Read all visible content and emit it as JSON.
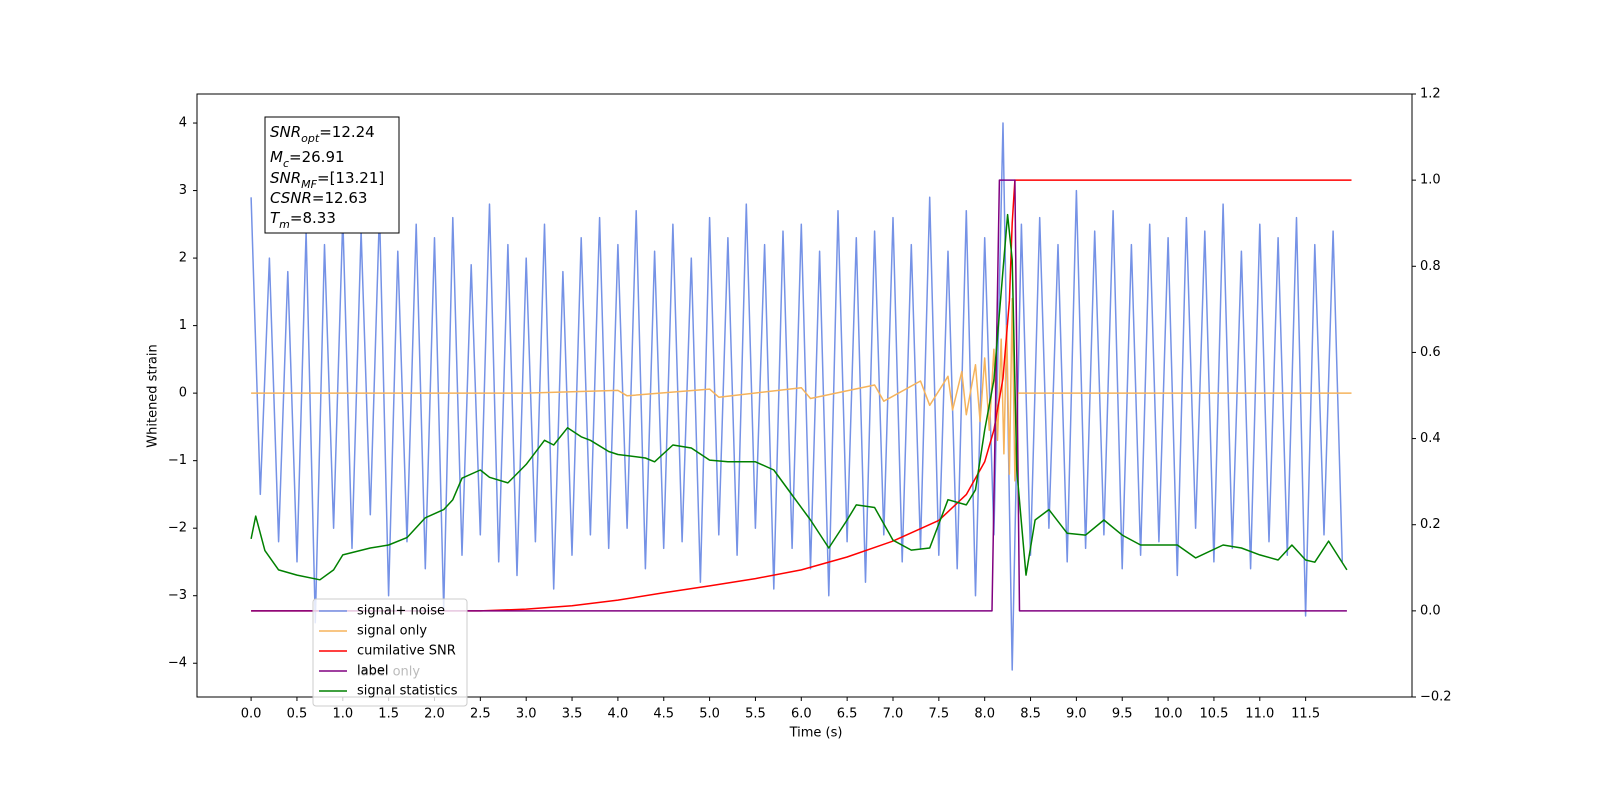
{
  "chart_data": {
    "type": "line",
    "xlabel": "Time (s)",
    "ylabel": "Whitened strain",
    "xlim": [
      -0.59,
      12.66
    ],
    "ylim": [
      -4.5,
      4.43
    ],
    "y2lim": [
      -0.2,
      1.2
    ],
    "xticks": [
      {
        "value": 0,
        "label": "0.0"
      },
      0.5,
      {
        "value": 1,
        "label": "1.0"
      },
      1.5,
      {
        "value": 2,
        "label": "2.0"
      },
      2.5,
      {
        "value": 3,
        "label": "3.0"
      },
      3.5,
      {
        "value": 4,
        "label": "4.0"
      },
      4.5,
      {
        "value": 5,
        "label": "5.0"
      },
      5.5,
      {
        "value": 6,
        "label": "6.0"
      },
      6.5,
      {
        "value": 7,
        "label": "7.0"
      },
      7.5,
      {
        "value": 8,
        "label": "8.0"
      },
      8.5,
      {
        "value": 9,
        "label": "9.0"
      },
      9.5,
      {
        "value": 10,
        "label": "10.0"
      },
      10.5,
      {
        "value": 11,
        "label": "11.0"
      },
      11.5
    ],
    "yticks": [
      {
        "value": -4,
        "label": "−4"
      },
      {
        "value": -3,
        "label": "−3"
      },
      {
        "value": -2,
        "label": "−2"
      },
      {
        "value": -1,
        "label": "−1"
      },
      0,
      1,
      2,
      3,
      4
    ],
    "y2ticks": [
      {
        "value": -0.2,
        "label": "−0.2"
      },
      {
        "value": 0,
        "label": "0.0"
      },
      0.2,
      0.4,
      0.6,
      0.8,
      {
        "value": 1,
        "label": "1.0"
      },
      1.2
    ],
    "legend": "lower left",
    "annotations": [
      "label only"
    ],
    "textbox": [
      {
        "main": "SNR",
        "sub": "opt",
        "value": "=12.24"
      },
      {
        "main": "M",
        "sub": "c",
        "value": "=26.91"
      },
      {
        "main": "SNR",
        "sub": "MF",
        "value": "=[13.21]"
      },
      {
        "main": "CSNR",
        "sub": null,
        "value": "=12.63"
      },
      {
        "main": "T",
        "sub": "m",
        "value": "=8.33"
      }
    ],
    "series": [
      {
        "name": "signal+ noise",
        "color": "#7592e6",
        "axis": "y",
        "x": [
          0,
          0.1,
          0.2,
          0.3,
          0.4,
          0.5,
          0.6,
          0.7,
          0.8,
          0.9,
          1,
          1.1,
          1.2,
          1.3,
          1.4,
          1.5,
          1.6,
          1.7,
          1.8,
          1.9,
          2,
          2.1,
          2.2,
          2.3,
          2.4,
          2.5,
          2.6,
          2.7,
          2.8,
          2.9,
          3,
          3.1,
          3.2,
          3.3,
          3.4,
          3.5,
          3.6,
          3.7,
          3.8,
          3.9,
          4,
          4.1,
          4.2,
          4.3,
          4.4,
          4.5,
          4.6,
          4.7,
          4.8,
          4.9,
          5,
          5.1,
          5.2,
          5.3,
          5.4,
          5.5,
          5.6,
          5.7,
          5.8,
          5.9,
          6,
          6.1,
          6.2,
          6.3,
          6.4,
          6.5,
          6.6,
          6.7,
          6.8,
          6.9,
          7,
          7.1,
          7.2,
          7.3,
          7.4,
          7.5,
          7.6,
          7.7,
          7.8,
          7.9,
          8,
          8.1,
          8.2,
          8.3,
          8.4,
          8.5,
          8.6,
          8.7,
          8.8,
          8.9,
          9,
          9.1,
          9.2,
          9.3,
          9.4,
          9.5,
          9.6,
          9.7,
          9.8,
          9.9,
          10,
          10.1,
          10.2,
          10.3,
          10.4,
          10.5,
          10.6,
          10.7,
          10.8,
          10.9,
          11,
          11.1,
          11.2,
          11.3,
          11.4,
          11.5,
          11.6,
          11.7,
          11.8,
          11.9
        ],
        "values": [
          2.9,
          -1.5,
          2.0,
          -2.2,
          1.8,
          -2.5,
          2.4,
          -3.4,
          2.2,
          -2.0,
          2.6,
          -2.3,
          2.4,
          -1.8,
          2.7,
          -3.0,
          2.1,
          -2.2,
          2.5,
          -2.6,
          2.3,
          -3.2,
          2.6,
          -2.4,
          1.9,
          -2.1,
          2.8,
          -2.5,
          2.2,
          -2.7,
          2.0,
          -2.2,
          2.5,
          -2.9,
          1.8,
          -2.4,
          2.3,
          -2.1,
          2.6,
          -2.3,
          2.2,
          -2.0,
          2.7,
          -2.6,
          2.1,
          -2.3,
          2.5,
          -2.2,
          2.0,
          -2.8,
          2.6,
          -2.1,
          2.3,
          -2.4,
          2.8,
          -2.0,
          2.2,
          -2.9,
          2.4,
          -2.3,
          2.5,
          -2.6,
          2.1,
          -3.0,
          2.7,
          -2.2,
          2.3,
          -2.8,
          2.4,
          -2.1,
          2.6,
          -2.5,
          2.2,
          -2.3,
          2.9,
          -2.4,
          2.1,
          -2.6,
          2.7,
          -3.0,
          2.3,
          -2.1,
          4.0,
          -4.1,
          2.5,
          -2.4,
          2.6,
          -2.0,
          2.2,
          -2.5,
          3.0,
          -2.3,
          2.4,
          -2.1,
          2.7,
          -2.6,
          2.2,
          -2.4,
          2.5,
          -2.2,
          2.3,
          -2.7,
          2.6,
          -2.0,
          2.4,
          -2.5,
          2.8,
          -2.3,
          2.1,
          -2.6,
          2.5,
          -2.2,
          2.3,
          -2.4,
          2.6,
          -3.3,
          2.2,
          -2.1,
          2.4,
          -2.5
        ]
      },
      {
        "name": "signal only",
        "color": "#f5b35c",
        "axis": "y",
        "x": [
          0,
          3.0,
          4.0,
          4.1,
          5.0,
          5.1,
          6.0,
          6.1,
          6.8,
          6.9,
          7.3,
          7.4,
          7.6,
          7.65,
          7.75,
          7.8,
          7.9,
          7.95,
          8.0,
          8.05,
          8.1,
          8.14,
          8.18,
          8.21,
          8.24,
          8.27,
          8.3,
          8.33,
          8.36,
          12.0
        ],
        "values": [
          0,
          0,
          0.04,
          -0.04,
          0.06,
          -0.06,
          0.08,
          -0.08,
          0.12,
          -0.12,
          0.18,
          -0.18,
          0.25,
          -0.25,
          0.32,
          -0.32,
          0.42,
          -0.42,
          0.52,
          -0.55,
          0.65,
          -0.7,
          0.8,
          -0.9,
          1.0,
          -1.2,
          1.4,
          -1.3,
          0,
          0
        ]
      },
      {
        "name": "cumilative SNR",
        "color": "#ff0000",
        "axis": "y2",
        "x": [
          0,
          2.5,
          3.0,
          3.5,
          4.0,
          4.5,
          5.0,
          5.5,
          6.0,
          6.5,
          7.0,
          7.5,
          7.8,
          8.0,
          8.1,
          8.2,
          8.27,
          8.3,
          8.33,
          12.0
        ],
        "values": [
          0,
          0,
          0.004,
          0.012,
          0.025,
          0.042,
          0.058,
          0.075,
          0.095,
          0.125,
          0.162,
          0.21,
          0.27,
          0.346,
          0.42,
          0.54,
          0.72,
          0.9,
          1,
          1
        ]
      },
      {
        "name": "label",
        "color": "#800080",
        "axis": "y2",
        "x": [
          0,
          8.08,
          8.16,
          8.33,
          8.38,
          11.95
        ],
        "values": [
          0,
          0,
          1,
          1,
          0,
          0
        ]
      },
      {
        "name": "signal statistics",
        "color": "#008000",
        "axis": "y2",
        "x": [
          0,
          0.05,
          0.15,
          0.3,
          0.5,
          0.75,
          0.9,
          1.0,
          1.3,
          1.5,
          1.7,
          1.9,
          2.1,
          2.2,
          2.3,
          2.5,
          2.6,
          2.8,
          3.0,
          3.2,
          3.3,
          3.45,
          3.6,
          3.7,
          3.9,
          4.0,
          4.3,
          4.4,
          4.6,
          4.8,
          5.0,
          5.2,
          5.5,
          5.7,
          5.9,
          6.1,
          6.3,
          6.5,
          6.6,
          6.8,
          7.0,
          7.2,
          7.4,
          7.6,
          7.8,
          7.9,
          8.0,
          8.1,
          8.25,
          8.3,
          8.35,
          8.45,
          8.55,
          8.7,
          8.9,
          9.1,
          9.3,
          9.5,
          9.7,
          9.9,
          10.1,
          10.3,
          10.6,
          10.8,
          11.0,
          11.2,
          11.35,
          11.5,
          11.6,
          11.75,
          11.95
        ],
        "values": [
          0.167,
          0.22,
          0.14,
          0.095,
          0.083,
          0.072,
          0.095,
          0.13,
          0.146,
          0.153,
          0.17,
          0.216,
          0.235,
          0.258,
          0.308,
          0.327,
          0.31,
          0.297,
          0.34,
          0.396,
          0.385,
          0.425,
          0.404,
          0.396,
          0.37,
          0.363,
          0.355,
          0.346,
          0.385,
          0.378,
          0.35,
          0.346,
          0.346,
          0.327,
          0.269,
          0.211,
          0.146,
          0.211,
          0.246,
          0.24,
          0.164,
          0.141,
          0.146,
          0.258,
          0.246,
          0.281,
          0.42,
          0.536,
          0.92,
          0.815,
          0.327,
          0.083,
          0.211,
          0.235,
          0.18,
          0.176,
          0.211,
          0.176,
          0.153,
          0.153,
          0.153,
          0.123,
          0.153,
          0.146,
          0.13,
          0.118,
          0.153,
          0.118,
          0.113,
          0.162,
          0.095
        ]
      }
    ]
  }
}
